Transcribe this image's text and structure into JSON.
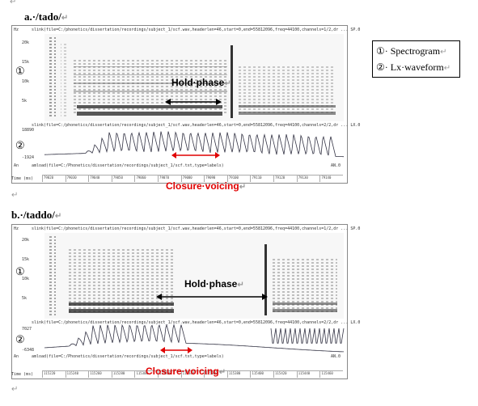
{
  "pilcrow": "↵",
  "figure_a": {
    "title": "a.·/tado/",
    "spec_header": "slink(file=C:/phonetics/dissertation/recordings/subject_1/scf.wav,headerlen=46,start=0,end=55812096,freq=44100,channels=1/2,dr ... SP.0",
    "lx_header": "slink(file=C:/phonetics/dissertation/recordings/subject_1/scf.wav,headerlen=46,start=0,end=55812096,freq=44100,channels=2/2,dr ... LX.0",
    "an_header": "amload(file=C:/Phonetics/dissertation/recordings/subject_1/scf.txt,type=labels)",
    "an_right": "AN.0",
    "spec_marker": "①",
    "lx_marker": "②",
    "y_unit": "Hz",
    "y_ticks": [
      "20k",
      "15k",
      "10k",
      "5k"
    ],
    "lx_top": "18890",
    "lx_bottom": "-1924",
    "an_label": "An",
    "time_label": "Time (ms)",
    "time_ticks": [
      "79020",
      "79030",
      "79040",
      "79050",
      "79060",
      "79070",
      "79080",
      "79090",
      "79100",
      "79110",
      "79120",
      "79130",
      "79140"
    ],
    "hold_phase": "Hold·phase",
    "closure_voicing": "Closure·voicing"
  },
  "figure_b": {
    "title": "b.·/taddo/",
    "spec_header": "slink(file=C:/phonetics/dissertation/recordings/subject_1/scf.wav,headerlen=46,start=0,end=55812096,freq=44100,channels=1/2,dr ... SP.0",
    "lx_header": "slink(file=C:/phonetics/dissertation/recordings/subject_1/scf.wav,headerlen=46,start=0,end=55812096,freq=44100,channels=2/2,dr ... LX.0",
    "an_header": "amload(file=C:/Phonetics/dissertation/recordings/subject_1/scf.txt,type=labels)",
    "an_right": "AN.0",
    "spec_marker": "①",
    "lx_marker": "②",
    "y_unit": "Hz",
    "y_ticks": [
      "20k",
      "15k",
      "10k",
      "5k"
    ],
    "lx_top": "7027",
    "lx_bottom": "-6348",
    "an_label": "An",
    "time_label": "Time (ms)",
    "time_ticks": [
      "115220",
      "115240",
      "115260",
      "115280",
      "115300",
      "115320",
      "115340",
      "115360",
      "115380",
      "115400",
      "115420",
      "115440",
      "115460"
    ],
    "hold_phase": "Hold·phase",
    "closure_voicing": "Closure·voicing"
  },
  "legend": {
    "row1_marker": "①",
    "row1_text": "· Spectrogram",
    "row2_marker": "②",
    "row2_text": "· Lx·waveform"
  }
}
